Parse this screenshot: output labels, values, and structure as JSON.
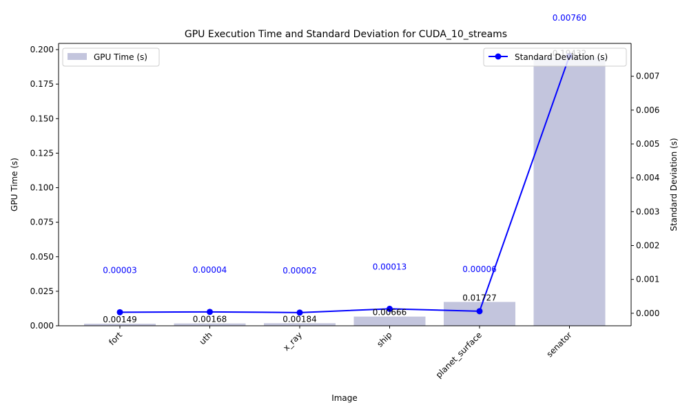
{
  "chart_data": {
    "type": "bar+line",
    "title": "GPU Execution Time and Standard Deviation for CUDA_10_streams",
    "xlabel": "Image",
    "ylabel_left": "GPU Time (s)",
    "ylabel_right": "Standard Deviation (s)",
    "categories": [
      "fort",
      "uth",
      "x_ray",
      "ship",
      "planet_surface",
      "senator"
    ],
    "bar_series": {
      "name": "GPU Time (s)",
      "values": [
        0.00149,
        0.00168,
        0.00184,
        0.00666,
        0.01727,
        0.19432
      ],
      "labels": [
        "0.00149",
        "0.00168",
        "0.00184",
        "0.00666",
        "0.01727",
        "0.19432"
      ],
      "color": "#c3c5dd"
    },
    "line_series": {
      "name": "Standard Deviation (s)",
      "values": [
        3e-05,
        4e-05,
        2e-05,
        0.00013,
        6e-05,
        0.0076
      ],
      "labels": [
        "0.00003",
        "0.00004",
        "0.00002",
        "0.00013",
        "0.00006",
        "0.00760"
      ],
      "color": "#0000ff"
    },
    "ylim_left": [
      0,
      0.2045
    ],
    "ylim_right": [
      -0.00037,
      0.00797
    ],
    "yticks_left": [
      "0.000",
      "0.025",
      "0.050",
      "0.075",
      "0.100",
      "0.125",
      "0.150",
      "0.175",
      "0.200"
    ],
    "yticks_right": [
      "0.000",
      "0.001",
      "0.002",
      "0.003",
      "0.004",
      "0.005",
      "0.006",
      "0.007"
    ],
    "grid": false,
    "legend_left": "top-left",
    "legend_right": "top-right"
  }
}
